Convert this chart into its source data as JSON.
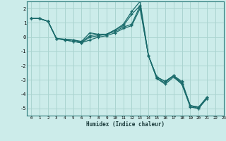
{
  "xlabel": "Humidex (Indice chaleur)",
  "bg_color": "#ccecea",
  "grid_color": "#aad4d0",
  "line_color": "#1a6b6b",
  "xlim": [
    -0.5,
    23
  ],
  "ylim": [
    -5.5,
    2.5
  ],
  "xticks": [
    0,
    1,
    2,
    3,
    4,
    5,
    6,
    7,
    8,
    9,
    10,
    11,
    12,
    13,
    14,
    15,
    16,
    17,
    18,
    19,
    20,
    21,
    22,
    23
  ],
  "yticks": [
    -5,
    -4,
    -3,
    -2,
    -1,
    0,
    1,
    2
  ],
  "lines": [
    [
      1.3,
      1.3,
      1.1,
      -0.1,
      -0.15,
      -0.2,
      -0.3,
      0.3,
      0.2,
      0.2,
      0.5,
      0.9,
      1.8,
      2.5,
      -1.3,
      -2.8,
      -3.1,
      -2.7,
      -3.1,
      -4.8,
      -4.9,
      -4.2
    ],
    [
      1.3,
      1.3,
      1.1,
      -0.1,
      -0.15,
      -0.2,
      -0.35,
      0.1,
      0.2,
      0.2,
      0.5,
      0.8,
      1.6,
      2.2,
      -1.3,
      -2.8,
      -3.1,
      -2.7,
      -3.2,
      -4.8,
      -5.0,
      -4.2
    ],
    [
      1.3,
      1.3,
      1.1,
      -0.1,
      -0.2,
      -0.3,
      -0.4,
      -0.0,
      0.1,
      0.2,
      0.4,
      0.7,
      0.9,
      2.2,
      -1.3,
      -2.9,
      -3.2,
      -2.7,
      -3.3,
      -4.8,
      -4.9,
      -4.3
    ],
    [
      1.3,
      1.3,
      1.1,
      -0.1,
      -0.2,
      -0.3,
      -0.4,
      -0.2,
      0.0,
      0.1,
      0.3,
      0.6,
      0.8,
      2.0,
      -1.3,
      -2.9,
      -3.3,
      -2.8,
      -3.3,
      -4.9,
      -5.0,
      -4.3
    ]
  ],
  "x_start": 0,
  "marker": "+",
  "markersize": 3,
  "linewidth": 0.9
}
